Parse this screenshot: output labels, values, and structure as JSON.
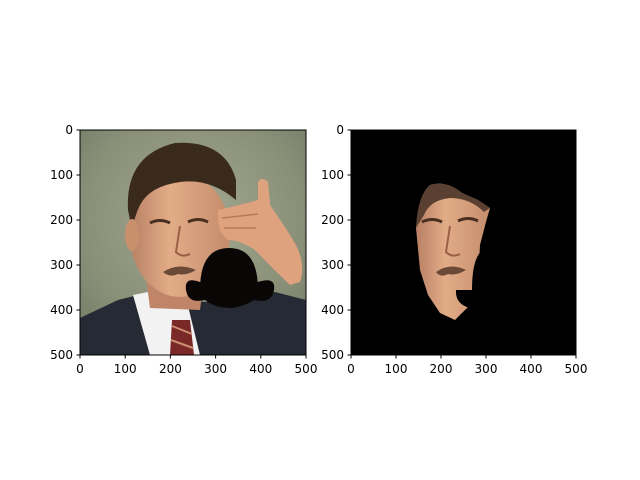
{
  "chart_data": [
    {
      "type": "image",
      "title": "",
      "xlabel": "",
      "ylabel": "",
      "xlim": [
        0,
        500
      ],
      "ylim": [
        500,
        0
      ],
      "xticks": [
        0,
        100,
        200,
        300,
        400,
        500
      ],
      "yticks": [
        0,
        100,
        200,
        300,
        400,
        500
      ],
      "xtick_labels": [
        "0",
        "100",
        "200",
        "300",
        "400",
        "500"
      ],
      "ytick_labels": [
        "0",
        "100",
        "200",
        "300",
        "400",
        "500"
      ],
      "content": "photo of a man in a suit and tie touching his forehead with his hand; a black bowler-hat shaped occlusion covers the lower-right of his face",
      "colors": {
        "background": "#8a9078",
        "hair": "#3a2a1c",
        "skin": "#d8a07c",
        "suit": "#262a34",
        "shirt": "#f4f4f4",
        "tie": "#7a2828",
        "occluder": "#0a0606"
      }
    },
    {
      "type": "image",
      "title": "",
      "xlabel": "",
      "ylabel": "",
      "xlim": [
        0,
        500
      ],
      "ylim": [
        500,
        0
      ],
      "xticks": [
        0,
        100,
        200,
        300,
        400,
        500
      ],
      "yticks": [
        0,
        100,
        200,
        300,
        400,
        500
      ],
      "xtick_labels": [
        "0",
        "100",
        "200",
        "300",
        "400",
        "500"
      ],
      "ytick_labels": [
        "0",
        "100",
        "200",
        "300",
        "400",
        "500"
      ],
      "content": "masked face region on black background; the hat occlusion is also black",
      "colors": {
        "background": "#000000",
        "skin": "#d8a07c",
        "hair": "#3a2a1c"
      }
    }
  ]
}
